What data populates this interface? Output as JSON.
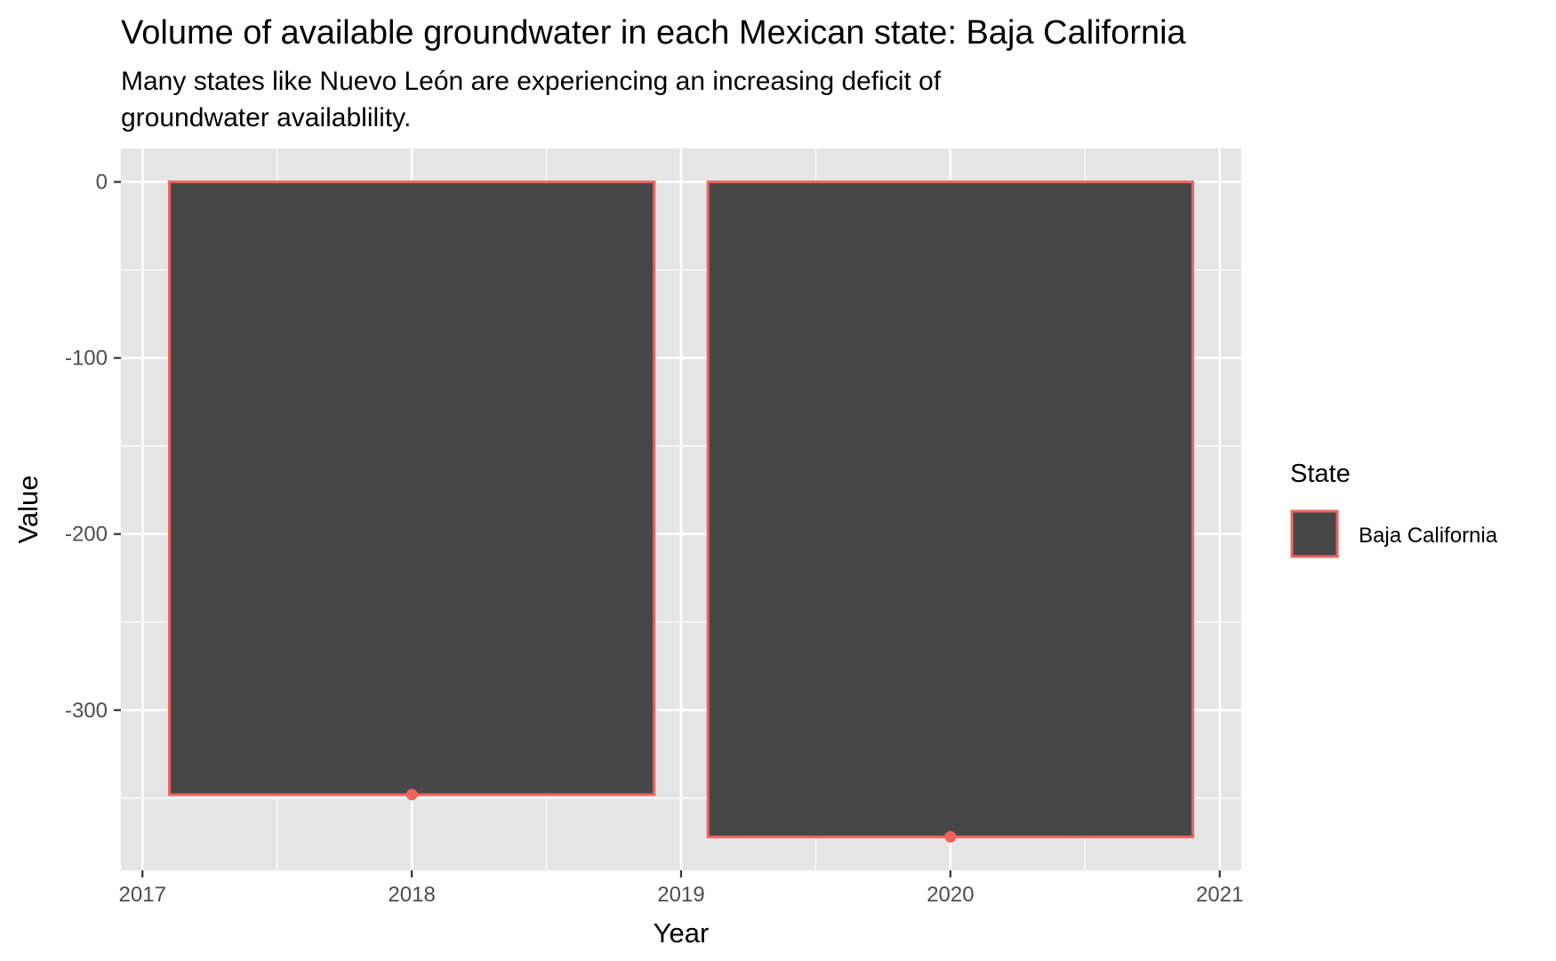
{
  "chart_data": {
    "type": "bar",
    "title": "Volume of available groundwater in each Mexican state: Baja California",
    "subtitle": [
      "Many states like Nuevo León are experiencing an increasing deficit of",
      "groundwater availablility."
    ],
    "xlabel": "Year",
    "ylabel": "Value",
    "x_ticks": [
      "2017",
      "2018",
      "2019",
      "2020",
      "2021"
    ],
    "y_ticks": [
      "0",
      "-100",
      "-200",
      "-300"
    ],
    "xlim": [
      2016.92,
      2021.08
    ],
    "ylim": [
      -391,
      19
    ],
    "grid": true,
    "legend": {
      "title": "State",
      "position": "right",
      "entries": [
        "Baja California"
      ]
    },
    "colors": {
      "panel_bg": "#e5e5e5",
      "grid": "#ffffff",
      "bar_fill": "#474747",
      "series_outline": "#f0625e"
    },
    "bar_width_years": 1.8,
    "series": [
      {
        "name": "Baja California",
        "x": [
          2018,
          2020
        ],
        "values": [
          -348,
          -372
        ]
      }
    ]
  }
}
